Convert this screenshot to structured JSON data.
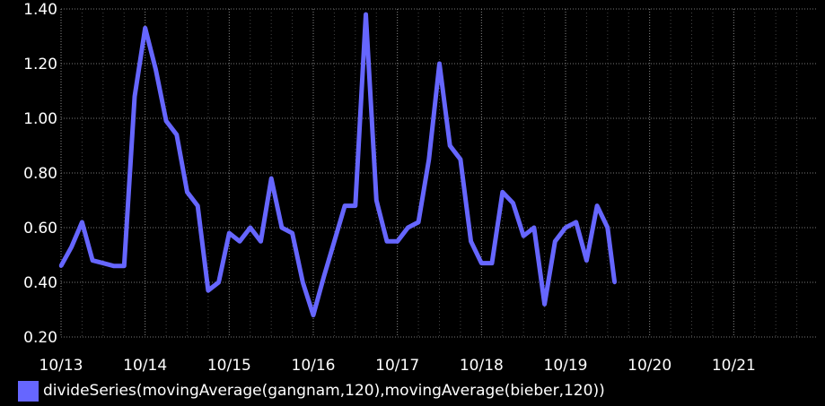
{
  "chart_data": {
    "type": "line",
    "title": "",
    "xlabel": "",
    "ylabel": "",
    "grid": true,
    "legend_position": "bottom-left",
    "ylim": [
      0.2,
      1.4
    ],
    "y_ticks": [
      "0.20",
      "0.40",
      "0.60",
      "0.80",
      "1.00",
      "1.20",
      "1.40"
    ],
    "x_ticks": [
      "10/13",
      "10/14",
      "10/15",
      "10/16",
      "10/17",
      "10/18",
      "10/19",
      "10/20",
      "10/21"
    ],
    "x_unit": "day",
    "x_range": [
      "10/13",
      "10/22"
    ],
    "series": [
      {
        "name": "divideSeries(movingAverage(gangnam,120),movingAverage(bieber,120))",
        "color": "#6666ff",
        "x": [
          "10/13 00:00",
          "10/13 03:00",
          "10/13 06:00",
          "10/13 09:00",
          "10/13 12:00",
          "10/13 15:00",
          "10/13 18:00",
          "10/13 21:00",
          "10/14 00:00",
          "10/14 03:00",
          "10/14 06:00",
          "10/14 09:00",
          "10/14 12:00",
          "10/14 15:00",
          "10/14 18:00",
          "10/14 21:00",
          "10/15 00:00",
          "10/15 03:00",
          "10/15 06:00",
          "10/15 09:00",
          "10/15 12:00",
          "10/15 15:00",
          "10/15 18:00",
          "10/15 21:00",
          "10/16 00:00",
          "10/16 03:00",
          "10/16 06:00",
          "10/16 09:00",
          "10/16 12:00",
          "10/16 15:00",
          "10/16 18:00",
          "10/16 21:00",
          "10/17 00:00",
          "10/17 03:00",
          "10/17 06:00",
          "10/17 09:00",
          "10/17 12:00",
          "10/17 15:00",
          "10/17 18:00",
          "10/17 21:00",
          "10/18 00:00",
          "10/18 03:00",
          "10/18 06:00",
          "10/18 09:00",
          "10/18 12:00",
          "10/18 15:00",
          "10/18 18:00",
          "10/18 21:00",
          "10/19 00:00",
          "10/19 03:00",
          "10/19 06:00",
          "10/19 09:00",
          "10/19 12:00",
          "10/19 14:00"
        ],
        "values": [
          0.46,
          0.53,
          0.62,
          0.48,
          0.47,
          0.46,
          0.46,
          1.08,
          1.33,
          1.18,
          0.99,
          0.94,
          0.73,
          0.68,
          0.37,
          0.4,
          0.58,
          0.55,
          0.6,
          0.55,
          0.78,
          0.6,
          0.58,
          0.4,
          0.28,
          0.42,
          0.55,
          0.68,
          0.68,
          1.38,
          0.7,
          0.55,
          0.55,
          0.6,
          0.62,
          0.85,
          1.2,
          0.9,
          0.85,
          0.55,
          0.47,
          0.47,
          0.73,
          0.69,
          0.57,
          0.6,
          0.32,
          0.55,
          0.6,
          0.62,
          0.48,
          0.68,
          0.6,
          0.4
        ]
      }
    ]
  }
}
